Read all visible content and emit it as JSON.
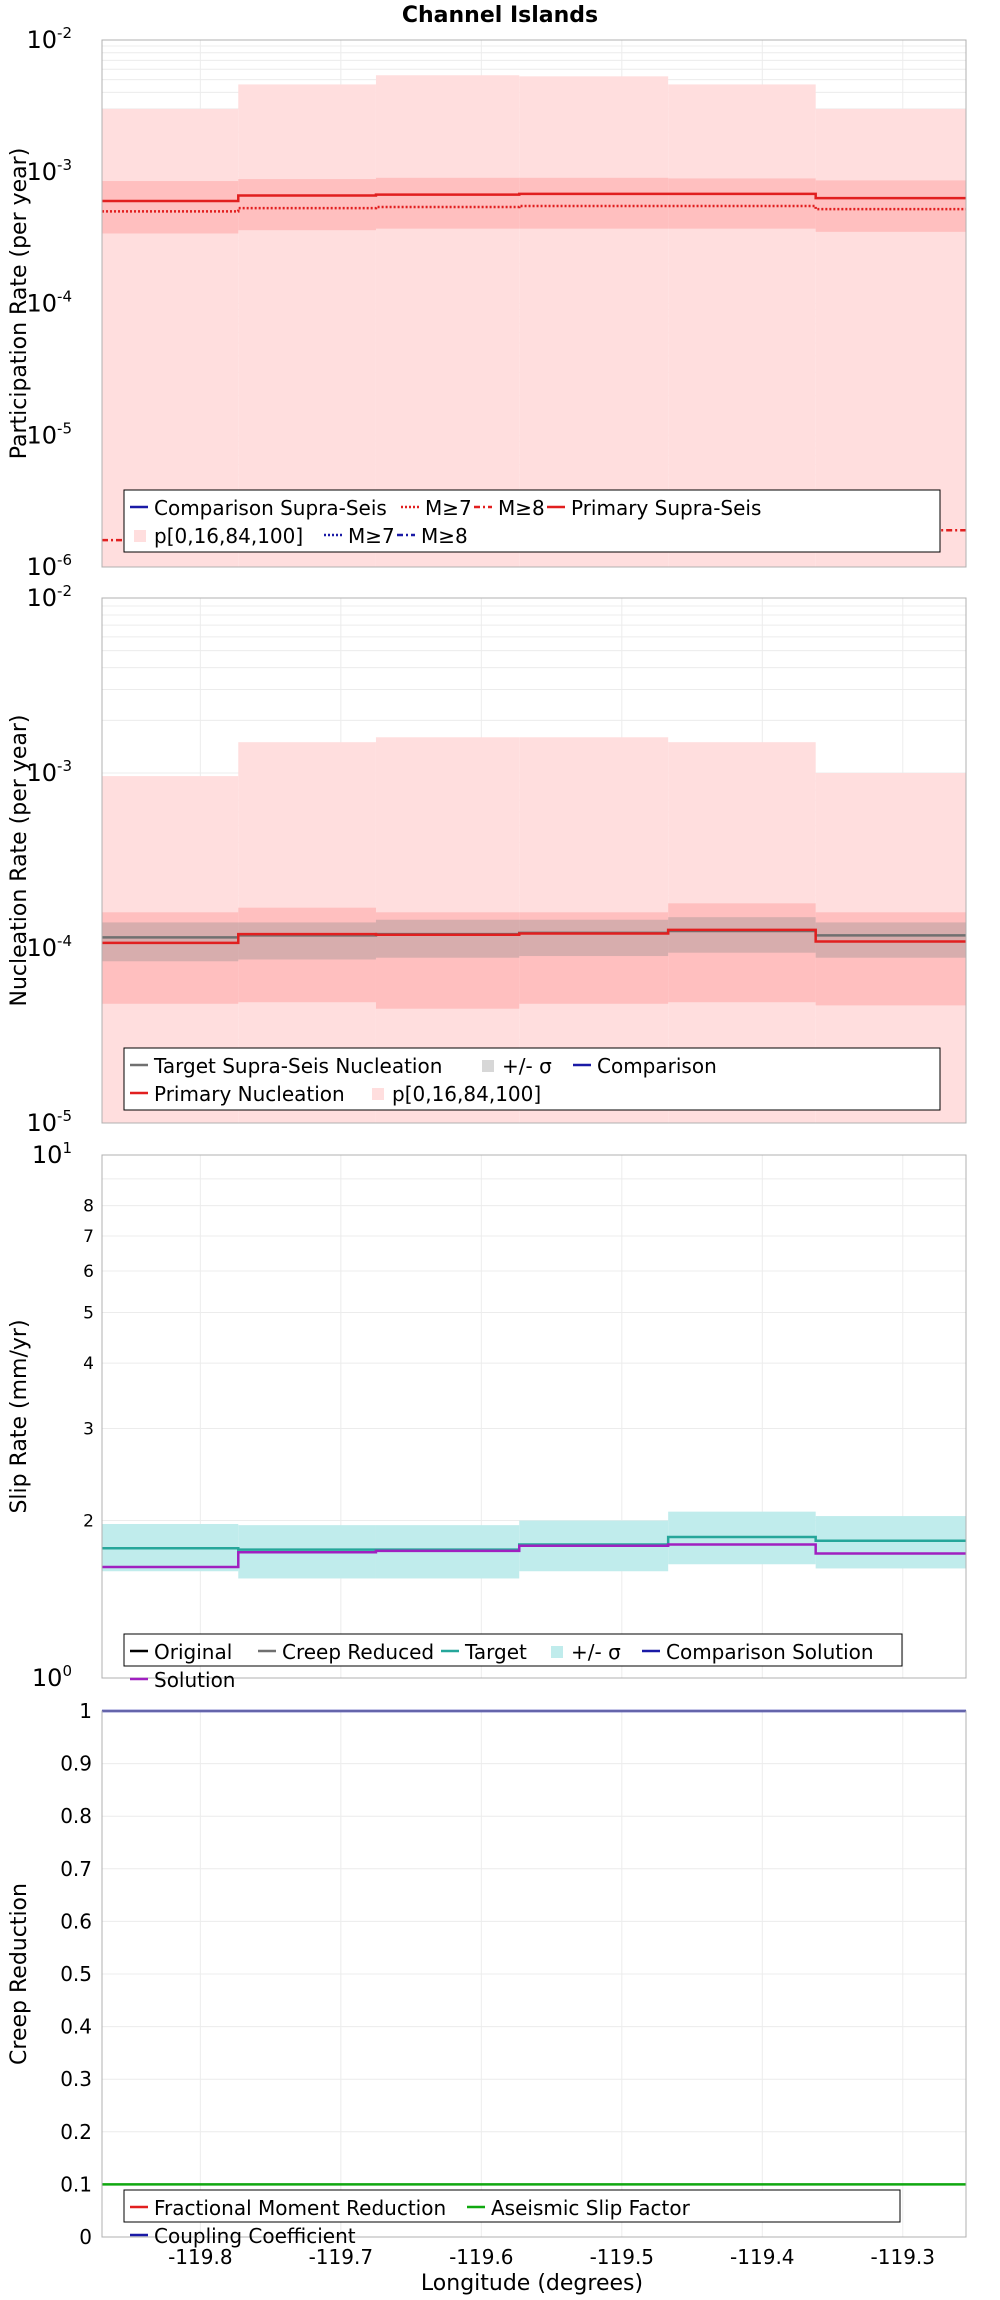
{
  "title": "Channel Islands",
  "xlabel": "Longitude (degrees)",
  "x_ticks": [
    -119.8,
    -119.7,
    -119.6,
    -119.5,
    -119.4,
    -119.3
  ],
  "x_tick_labels": [
    "-119.8",
    "-119.7",
    "-119.6",
    "-119.5",
    "-119.4",
    "-119.3"
  ],
  "x_range": [
    -119.87,
    -119.255
  ],
  "colors": {
    "red": "#e11f1f",
    "pink_band": "#ffdede",
    "pink_mid": "#ffbfbf",
    "teal": "#26a69a",
    "teal_band": "#c0ecec",
    "blue": "#1a1aa6",
    "purple": "#a020c0",
    "green": "#10a810",
    "gray": "#707070",
    "grid": "#ececec"
  },
  "chart_data": [
    {
      "id": "participation",
      "type": "line",
      "ylabel": "Participation Rate (per year)",
      "log": true,
      "ylim_exp": [
        -6,
        -2
      ],
      "y_tick_labels": [
        "10",
        "10",
        "10",
        "10",
        "10"
      ],
      "y_tick_exps": [
        "-6",
        "-5",
        "-4",
        "-3",
        "-2"
      ],
      "bin_edges": [
        -119.87,
        -119.773,
        -119.675,
        -119.573,
        -119.467,
        -119.362,
        -119.255
      ],
      "series": [
        {
          "name": "p[0,16,84,100]",
          "kind": "band",
          "lo": [
            1e-06,
            1e-06,
            1e-06,
            1e-06,
            1e-06,
            1e-06
          ],
          "hi": [
            0.003,
            0.0046,
            0.0054,
            0.0053,
            0.0046,
            0.003
          ]
        },
        {
          "name": "",
          "kind": "band_mid",
          "lo": [
            0.00034,
            0.00036,
            0.00037,
            0.00037,
            0.00037,
            0.00035
          ],
          "hi": [
            0.00085,
            0.00088,
            0.0009,
            0.0009,
            0.00089,
            0.00086
          ]
        },
        {
          "name": "Primary Supra-Seis",
          "kind": "step",
          "values": [
            0.0006,
            0.00066,
            0.00067,
            0.00068,
            0.00068,
            0.00063
          ],
          "color": "red",
          "dash": "none"
        },
        {
          "name": "M≥7",
          "kind": "step",
          "values": [
            0.0005,
            0.00053,
            0.00054,
            0.00055,
            0.00055,
            0.00052
          ],
          "color": "red",
          "dash": "2,2"
        },
        {
          "name": "M≥8",
          "kind": "step",
          "values": [
            1.6e-06,
            1.7e-06,
            1.7e-06,
            1.7e-06,
            1.7e-06,
            1.9e-06
          ],
          "color": "red",
          "dash": "6,3,2,3"
        },
        {
          "name": "Comparison Supra-Seis",
          "kind": "legend_only",
          "color": "blue",
          "dash": "none"
        },
        {
          "name": "M≥7",
          "kind": "legend_only",
          "color": "blue",
          "dash": "2,2"
        },
        {
          "name": "M≥8",
          "kind": "legend_only",
          "color": "blue",
          "dash": "6,3,2,3"
        }
      ],
      "legend": [
        "Comparison Supra-Seis",
        "M≥7",
        "M≥8",
        "Primary Supra-Seis",
        "p[0,16,84,100]",
        "M≥7",
        "M≥8"
      ]
    },
    {
      "id": "nucleation",
      "type": "line",
      "ylabel": "Nucleation Rate (per year)",
      "log": true,
      "ylim_exp": [
        -5,
        -2
      ],
      "y_tick_labels": [
        "10",
        "10",
        "10",
        "10"
      ],
      "y_tick_exps": [
        "-5",
        "-4",
        "-3",
        "-2"
      ],
      "bin_edges": [
        -119.87,
        -119.773,
        -119.675,
        -119.573,
        -119.467,
        -119.362,
        -119.255
      ],
      "series": [
        {
          "name": "p[0,16,84,100]",
          "kind": "band",
          "lo": [
            1e-05,
            1e-05,
            1e-05,
            1e-05,
            1e-05,
            1e-05
          ],
          "hi": [
            0.00096,
            0.0015,
            0.0016,
            0.0016,
            0.0015,
            0.001
          ]
        },
        {
          "name": "",
          "kind": "band_mid",
          "lo": [
            4.8e-05,
            4.9e-05,
            4.5e-05,
            4.8e-05,
            4.9e-05,
            4.7e-05
          ],
          "hi": [
            0.00016,
            0.00017,
            0.00016,
            0.00016,
            0.00018,
            0.00016
          ]
        },
        {
          "name": "+/- σ",
          "kind": "band_gray",
          "lo": [
            8.4e-05,
            8.6e-05,
            8.8e-05,
            9e-05,
            9.4e-05,
            8.8e-05
          ],
          "hi": [
            0.00014,
            0.00014,
            0.000145,
            0.000145,
            0.00015,
            0.00014
          ]
        },
        {
          "name": "Target Supra-Seis Nucleation",
          "kind": "step",
          "values": [
            0.000115,
            0.000118,
            0.00012,
            0.000122,
            0.000125,
            0.000118
          ],
          "color": "gray",
          "dash": "none"
        },
        {
          "name": "Primary Nucleation",
          "kind": "step",
          "values": [
            0.000107,
            0.00012,
            0.000119,
            0.000121,
            0.000127,
            0.000109
          ],
          "color": "red",
          "dash": "none"
        },
        {
          "name": "Comparison",
          "kind": "legend_only",
          "color": "blue",
          "dash": "none"
        }
      ],
      "legend": [
        "Target Supra-Seis Nucleation",
        "+/- σ",
        "Comparison",
        "Primary Nucleation",
        "p[0,16,84,100]"
      ]
    },
    {
      "id": "slip",
      "type": "line",
      "ylabel": "Slip Rate (mm/yr)",
      "log": true,
      "ylim_exp": [
        0,
        1
      ],
      "y_tick_labels": [
        "10",
        "10"
      ],
      "y_tick_exps": [
        "0",
        "1"
      ],
      "y_minor_ticks": [
        2,
        3,
        4,
        5,
        6,
        7,
        8
      ],
      "bin_edges": [
        -119.87,
        -119.773,
        -119.675,
        -119.573,
        -119.467,
        -119.362,
        -119.255
      ],
      "series": [
        {
          "name": "+/- σ",
          "kind": "band_teal",
          "lo": [
            1.6,
            1.55,
            1.55,
            1.6,
            1.65,
            1.62
          ],
          "hi": [
            1.97,
            1.96,
            1.96,
            2.0,
            2.08,
            2.04
          ]
        },
        {
          "name": "Target",
          "kind": "step",
          "values": [
            1.77,
            1.76,
            1.76,
            1.8,
            1.86,
            1.83
          ],
          "color": "teal",
          "dash": "none"
        },
        {
          "name": "Solution",
          "kind": "step",
          "values": [
            1.63,
            1.74,
            1.75,
            1.79,
            1.8,
            1.73
          ],
          "color": "purple",
          "dash": "none"
        },
        {
          "name": "Original",
          "kind": "legend_only",
          "color": "black",
          "dash": "none"
        },
        {
          "name": "Creep Reduced",
          "kind": "legend_only",
          "color": "gray",
          "dash": "none"
        },
        {
          "name": "Comparison Solution",
          "kind": "legend_only",
          "color": "blue",
          "dash": "none"
        }
      ],
      "legend": [
        "Original",
        "Creep Reduced",
        "Target",
        "+/- σ",
        "Comparison Solution",
        "Solution"
      ]
    },
    {
      "id": "creep",
      "type": "line",
      "ylabel": "Creep Reduction",
      "log": false,
      "ylim": [
        0,
        1
      ],
      "y_ticks": [
        0,
        0.1,
        0.2,
        0.3,
        0.4,
        0.5,
        0.6,
        0.7,
        0.8,
        0.9,
        1
      ],
      "y_tick_labels": [
        "0",
        "0.1",
        "0.2",
        "0.3",
        "0.4",
        "0.5",
        "0.6",
        "0.7",
        "0.8",
        "0.9",
        "1"
      ],
      "bin_edges": [
        -119.87,
        -119.255
      ],
      "series": [
        {
          "name": "Coupling Coefficient",
          "kind": "step",
          "values": [
            1.0
          ],
          "color": "blue",
          "dash": "none"
        },
        {
          "name": "Aseismic Slip Factor",
          "kind": "step",
          "values": [
            0.1
          ],
          "color": "green",
          "dash": "none"
        },
        {
          "name": "Fractional Moment Reduction",
          "kind": "legend_only",
          "color": "red",
          "dash": "none"
        }
      ],
      "legend": [
        "Fractional Moment Reduction",
        "Aseismic Slip Factor",
        "Coupling Coefficient"
      ]
    }
  ]
}
